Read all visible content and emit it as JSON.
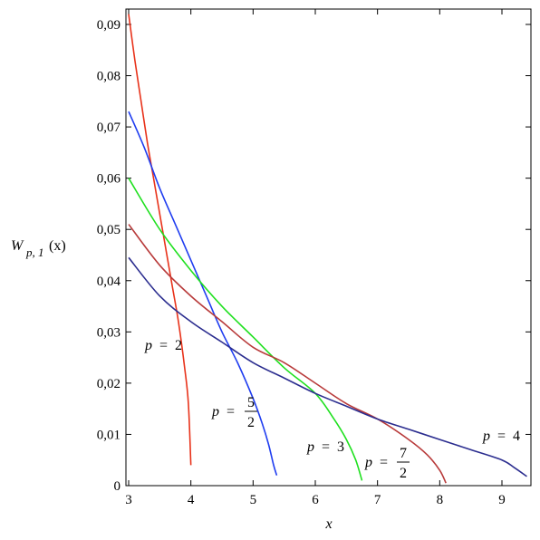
{
  "chart_data": {
    "type": "line",
    "title": "",
    "xlabel": "x",
    "ylabel_main": "W",
    "ylabel_sub": "p, 1",
    "ylabel_arg": "(x)",
    "xlim": [
      3,
      9.45
    ],
    "ylim": [
      0,
      0.093
    ],
    "xticks": [
      3,
      4,
      5,
      6,
      7,
      8,
      9
    ],
    "xtick_labels": [
      "3",
      "4",
      "5",
      "6",
      "7",
      "8",
      "9"
    ],
    "yticks": [
      0,
      0.01,
      0.02,
      0.03,
      0.04,
      0.05,
      0.06,
      0.07,
      0.08,
      0.09
    ],
    "ytick_labels": [
      "0",
      "0,01",
      "0,02",
      "0,03",
      "0,04",
      "0,05",
      "0,06",
      "0,07",
      "0,08",
      "0,09"
    ],
    "grid": false,
    "legend": "none",
    "series": [
      {
        "label_var": "p",
        "label_eq": "=",
        "label_value": "2",
        "color": "#e8321a",
        "points": [
          [
            3.0,
            0.092
          ],
          [
            3.1,
            0.083
          ],
          [
            3.2,
            0.075
          ],
          [
            3.3,
            0.067
          ],
          [
            3.4,
            0.06
          ],
          [
            3.5,
            0.053
          ],
          [
            3.6,
            0.046
          ],
          [
            3.7,
            0.039
          ],
          [
            3.8,
            0.032
          ],
          [
            3.9,
            0.023
          ],
          [
            3.96,
            0.016
          ],
          [
            4.0,
            0.004
          ]
        ]
      },
      {
        "label_var": "p",
        "label_eq": "=",
        "label_num": "5",
        "label_den": "2",
        "color": "#1f3df0",
        "points": [
          [
            3.0,
            0.073
          ],
          [
            3.25,
            0.066
          ],
          [
            3.5,
            0.058
          ],
          [
            3.75,
            0.051
          ],
          [
            4.0,
            0.044
          ],
          [
            4.25,
            0.037
          ],
          [
            4.5,
            0.03
          ],
          [
            4.75,
            0.024
          ],
          [
            5.0,
            0.017
          ],
          [
            5.15,
            0.012
          ],
          [
            5.25,
            0.008
          ],
          [
            5.33,
            0.004
          ],
          [
            5.38,
            0.002
          ]
        ]
      },
      {
        "label_var": "p",
        "label_eq": "=",
        "label_value": "3",
        "color": "#1fe01f",
        "points": [
          [
            3.0,
            0.06
          ],
          [
            3.5,
            0.05
          ],
          [
            4.0,
            0.042
          ],
          [
            4.5,
            0.035
          ],
          [
            5.0,
            0.029
          ],
          [
            5.5,
            0.023
          ],
          [
            6.0,
            0.018
          ],
          [
            6.3,
            0.013
          ],
          [
            6.5,
            0.009
          ],
          [
            6.65,
            0.005
          ],
          [
            6.75,
            0.001
          ]
        ]
      },
      {
        "label_var": "p",
        "label_eq": "=",
        "label_num": "7",
        "label_den": "2",
        "color": "#b83a3a",
        "points": [
          [
            3.0,
            0.051
          ],
          [
            3.5,
            0.043
          ],
          [
            4.0,
            0.037
          ],
          [
            4.5,
            0.032
          ],
          [
            5.0,
            0.027
          ],
          [
            5.5,
            0.024
          ],
          [
            6.0,
            0.02
          ],
          [
            6.5,
            0.016
          ],
          [
            7.0,
            0.013
          ],
          [
            7.5,
            0.009
          ],
          [
            7.8,
            0.006
          ],
          [
            8.0,
            0.003
          ],
          [
            8.1,
            0.0005
          ]
        ]
      },
      {
        "label_var": "p",
        "label_eq": "=",
        "label_value": "4",
        "color": "#2b2d8f",
        "points": [
          [
            3.0,
            0.0445
          ],
          [
            3.5,
            0.037
          ],
          [
            4.0,
            0.032
          ],
          [
            4.5,
            0.028
          ],
          [
            5.0,
            0.024
          ],
          [
            5.5,
            0.021
          ],
          [
            6.0,
            0.018
          ],
          [
            6.5,
            0.0155
          ],
          [
            7.0,
            0.013
          ],
          [
            7.5,
            0.011
          ],
          [
            8.0,
            0.009
          ],
          [
            8.5,
            0.007
          ],
          [
            9.0,
            0.005
          ],
          [
            9.2,
            0.0035
          ],
          [
            9.4,
            0.0018
          ]
        ]
      }
    ]
  }
}
